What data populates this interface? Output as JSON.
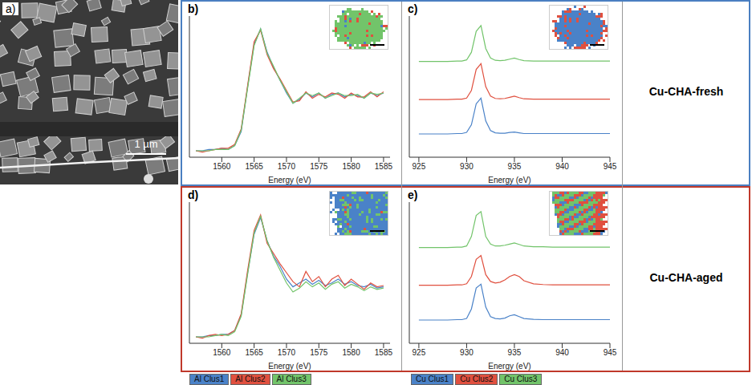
{
  "panel_a": {
    "label": "a)",
    "scale_bar": "1 µm"
  },
  "row_labels": [
    "Cu-CHA-fresh",
    "Cu-CHA-aged"
  ],
  "chart_data": [
    {
      "type": "line",
      "title": "b)",
      "xlabel": "Energy (eV)",
      "x": [
        1556,
        1557,
        1558,
        1559,
        1560,
        1561,
        1562,
        1563,
        1564,
        1565,
        1566,
        1567,
        1568,
        1569,
        1570,
        1571,
        1572,
        1573,
        1574,
        1575,
        1576,
        1577,
        1578,
        1579,
        1580,
        1581,
        1582,
        1583,
        1584,
        1585
      ],
      "series": [
        {
          "name": "Al Clus1",
          "color": "#4a82c8",
          "values": [
            0.05,
            0.05,
            0.06,
            0.06,
            0.07,
            0.06,
            0.09,
            0.2,
            0.55,
            0.88,
            1.0,
            0.82,
            0.7,
            0.6,
            0.5,
            0.42,
            0.45,
            0.5,
            0.47,
            0.5,
            0.46,
            0.49,
            0.5,
            0.47,
            0.49,
            0.48,
            0.46,
            0.5,
            0.48,
            0.5
          ]
        },
        {
          "name": "Al Clus2",
          "color": "#e0503f",
          "values": [
            0.05,
            0.04,
            0.05,
            0.06,
            0.07,
            0.07,
            0.1,
            0.22,
            0.56,
            0.9,
            0.99,
            0.8,
            0.69,
            0.61,
            0.52,
            0.43,
            0.44,
            0.51,
            0.46,
            0.49,
            0.47,
            0.5,
            0.49,
            0.46,
            0.5,
            0.47,
            0.47,
            0.51,
            0.47,
            0.51
          ]
        },
        {
          "name": "Al Clus3",
          "color": "#72c46a",
          "values": [
            0.05,
            0.05,
            0.05,
            0.06,
            0.06,
            0.06,
            0.09,
            0.21,
            0.54,
            0.87,
            1.0,
            0.81,
            0.71,
            0.6,
            0.51,
            0.42,
            0.46,
            0.5,
            0.48,
            0.5,
            0.46,
            0.48,
            0.5,
            0.48,
            0.48,
            0.49,
            0.46,
            0.5,
            0.49,
            0.5
          ]
        }
      ],
      "xlim": [
        1555,
        1586
      ],
      "xticks": [
        1560,
        1565,
        1570,
        1575,
        1580,
        1585
      ],
      "ylim": [
        0,
        1.1
      ],
      "tick_labels": "x",
      "legend": "bottom"
    },
    {
      "type": "line",
      "title": "c)",
      "xlabel": "Energy (eV)",
      "x": [
        925,
        926,
        927,
        928,
        929,
        929.5,
        930,
        930.5,
        931,
        931.5,
        932,
        932.5,
        933,
        933.5,
        934,
        934.5,
        935,
        935.5,
        936,
        937,
        938,
        939,
        940,
        941,
        942,
        943,
        944,
        945
      ],
      "series": [
        {
          "name": "Cu Clus1",
          "color": "#4a82c8",
          "values": [
            1.11,
            1.11,
            1.11,
            1.11,
            1.12,
            1.12,
            1.15,
            1.35,
            1.9,
            2.05,
            1.45,
            1.2,
            1.14,
            1.13,
            1.13,
            1.15,
            1.16,
            1.14,
            1.12,
            1.12,
            1.12,
            1.12,
            1.12,
            1.12,
            1.12,
            1.12,
            1.12,
            1.12
          ]
        },
        {
          "name": "Cu Clus2",
          "color": "#e0503f",
          "values": [
            2.01,
            2.01,
            2.01,
            2.01,
            2.02,
            2.02,
            2.05,
            2.25,
            2.8,
            2.95,
            2.35,
            2.1,
            2.04,
            2.03,
            2.04,
            2.07,
            2.1,
            2.06,
            2.03,
            2.02,
            2.02,
            2.02,
            2.02,
            2.02,
            2.02,
            2.02,
            2.02,
            2.02
          ]
        },
        {
          "name": "Cu Clus3",
          "color": "#72c46a",
          "values": [
            3.01,
            3.01,
            3.01,
            3.01,
            3.02,
            3.02,
            3.05,
            3.25,
            3.8,
            3.95,
            3.35,
            3.1,
            3.04,
            3.03,
            3.04,
            3.07,
            3.1,
            3.06,
            3.03,
            3.02,
            3.02,
            3.02,
            3.02,
            3.02,
            3.02,
            3.02,
            3.02,
            3.02
          ]
        }
      ],
      "xlim": [
        924,
        945
      ],
      "xticks": [
        925,
        930,
        935,
        940,
        945
      ],
      "ylim": [
        0.5,
        4.2
      ],
      "tick_labels": "x",
      "legend": "bottom"
    },
    {
      "type": "line",
      "title": "d)",
      "xlabel": "Energy (eV)",
      "x": [
        1556,
        1557,
        1558,
        1559,
        1560,
        1561,
        1562,
        1563,
        1564,
        1565,
        1566,
        1567,
        1568,
        1569,
        1570,
        1571,
        1572,
        1573,
        1574,
        1575,
        1576,
        1577,
        1578,
        1579,
        1580,
        1581,
        1582,
        1583,
        1584,
        1585
      ],
      "series": [
        {
          "name": "Al Clus1",
          "color": "#4a82c8",
          "values": [
            0.05,
            0.05,
            0.06,
            0.06,
            0.07,
            0.07,
            0.1,
            0.22,
            0.55,
            0.85,
            0.98,
            0.8,
            0.68,
            0.6,
            0.5,
            0.44,
            0.47,
            0.5,
            0.46,
            0.49,
            0.45,
            0.47,
            0.5,
            0.46,
            0.48,
            0.45,
            0.44,
            0.46,
            0.43,
            0.44
          ]
        },
        {
          "name": "Al Clus2",
          "color": "#e0503f",
          "values": [
            0.05,
            0.04,
            0.06,
            0.07,
            0.06,
            0.07,
            0.1,
            0.23,
            0.57,
            0.88,
            1.0,
            0.78,
            0.7,
            0.62,
            0.55,
            0.48,
            0.44,
            0.56,
            0.48,
            0.52,
            0.44,
            0.5,
            0.53,
            0.45,
            0.5,
            0.46,
            0.42,
            0.47,
            0.44,
            0.45
          ]
        },
        {
          "name": "Al Clus3",
          "color": "#72c46a",
          "values": [
            0.05,
            0.05,
            0.05,
            0.06,
            0.07,
            0.06,
            0.09,
            0.21,
            0.54,
            0.86,
            0.99,
            0.8,
            0.67,
            0.57,
            0.47,
            0.4,
            0.43,
            0.48,
            0.44,
            0.47,
            0.42,
            0.46,
            0.48,
            0.43,
            0.46,
            0.44,
            0.41,
            0.44,
            0.42,
            0.43
          ]
        }
      ],
      "xlim": [
        1555,
        1586
      ],
      "xticks": [
        1560,
        1565,
        1570,
        1575,
        1580,
        1585
      ],
      "ylim": [
        0,
        1.1
      ],
      "tick_labels": "x",
      "legend": "bottom"
    },
    {
      "type": "line",
      "title": "e)",
      "xlabel": "Energy (eV)",
      "x": [
        925,
        926,
        927,
        928,
        929,
        929.5,
        930,
        930.5,
        931,
        931.5,
        932,
        932.5,
        933,
        933.5,
        934,
        934.5,
        935,
        935.5,
        936,
        937,
        938,
        939,
        940,
        941,
        942,
        943,
        944,
        945
      ],
      "series": [
        {
          "name": "Cu Clus1",
          "color": "#4a82c8",
          "values": [
            1.11,
            1.11,
            1.11,
            1.11,
            1.12,
            1.12,
            1.15,
            1.4,
            1.95,
            2.05,
            1.45,
            1.2,
            1.15,
            1.14,
            1.16,
            1.22,
            1.25,
            1.2,
            1.15,
            1.13,
            1.12,
            1.12,
            1.12,
            1.12,
            1.12,
            1.12,
            1.12,
            1.12
          ]
        },
        {
          "name": "Cu Clus2",
          "color": "#e0503f",
          "values": [
            2.02,
            2.02,
            2.02,
            2.02,
            2.03,
            2.03,
            2.06,
            2.25,
            2.7,
            2.8,
            2.3,
            2.12,
            2.08,
            2.1,
            2.16,
            2.25,
            2.3,
            2.25,
            2.14,
            2.06,
            2.04,
            2.03,
            2.03,
            2.03,
            2.03,
            2.03,
            2.03,
            2.03
          ]
        },
        {
          "name": "Cu Clus3",
          "color": "#72c46a",
          "values": [
            3.01,
            3.01,
            3.01,
            3.01,
            3.02,
            3.02,
            3.05,
            3.3,
            3.85,
            3.95,
            3.3,
            3.1,
            3.05,
            3.05,
            3.07,
            3.1,
            3.13,
            3.09,
            3.05,
            3.03,
            3.03,
            3.02,
            3.02,
            3.02,
            3.02,
            3.02,
            3.02,
            3.02
          ]
        }
      ],
      "xlim": [
        924,
        945
      ],
      "xticks": [
        925,
        930,
        935,
        940,
        945
      ],
      "ylim": [
        0.5,
        4.2
      ],
      "tick_labels": "x",
      "legend": "bottom"
    }
  ]
}
